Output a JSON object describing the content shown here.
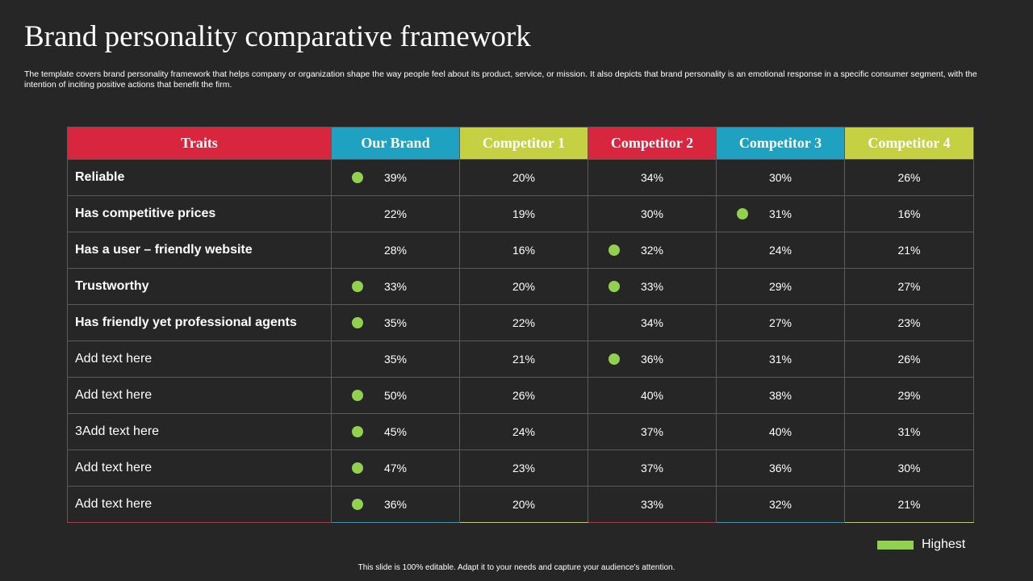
{
  "title": "Brand personality comparative framework",
  "subtitle": "The template covers brand personality framework that helps company or organization shape the way people feel about its product, service, or mission. It also depicts that brand personality is an emotional response in a specific consumer segment, with the intention of inciting positive actions that benefit the firm.",
  "colors": {
    "traits": "#d7263d",
    "our_brand": "#1fa2c2",
    "competitor_1": "#c6d043",
    "competitor_2": "#d7263d",
    "competitor_3": "#1fa2c2",
    "competitor_4": "#c6d043",
    "highest": "#92d050"
  },
  "table": {
    "headers": [
      {
        "label": "Traits",
        "color": "#d7263d",
        "text_color": "#ffffff"
      },
      {
        "label": "Our Brand",
        "color": "#1fa2c2",
        "text_color": "#ffffff"
      },
      {
        "label": "Competitor 1",
        "color": "#c6d043",
        "text_color": "#ffffff"
      },
      {
        "label": "Competitor 2",
        "color": "#d7263d",
        "text_color": "#ffffff"
      },
      {
        "label": "Competitor 3",
        "color": "#1fa2c2",
        "text_color": "#ffffff"
      },
      {
        "label": "Competitor 4",
        "color": "#c6d043",
        "text_color": "#ffffff"
      }
    ],
    "rows": [
      {
        "trait": "Reliable",
        "bold": true,
        "values": [
          "39%",
          "20%",
          "34%",
          "30%",
          "26%"
        ],
        "highest": [
          0
        ]
      },
      {
        "trait": "Has competitive prices",
        "bold": true,
        "values": [
          "22%",
          "19%",
          "30%",
          "31%",
          "16%"
        ],
        "highest": [
          3
        ]
      },
      {
        "trait": "Has a user – friendly website",
        "bold": true,
        "values": [
          "28%",
          "16%",
          "32%",
          "24%",
          "21%"
        ],
        "highest": [
          2
        ]
      },
      {
        "trait": "Trustworthy",
        "bold": true,
        "values": [
          "33%",
          "20%",
          "33%",
          "29%",
          "27%"
        ],
        "highest": [
          0,
          2
        ]
      },
      {
        "trait": "Has friendly yet professional agents",
        "bold": true,
        "values": [
          "35%",
          "22%",
          "34%",
          "27%",
          "23%"
        ],
        "highest": [
          0
        ]
      },
      {
        "trait": "Add text here",
        "bold": false,
        "values": [
          "35%",
          "21%",
          "36%",
          "31%",
          "26%"
        ],
        "highest": [
          2
        ]
      },
      {
        "trait": "Add text here",
        "bold": false,
        "values": [
          "50%",
          "26%",
          "40%",
          "38%",
          "29%"
        ],
        "highest": [
          0
        ]
      },
      {
        "trait": "3Add text here",
        "bold": false,
        "values": [
          "45%",
          "24%",
          "37%",
          "40%",
          "31%"
        ],
        "highest": [
          0
        ]
      },
      {
        "trait": "Add text here",
        "bold": false,
        "values": [
          "47%",
          "23%",
          "37%",
          "36%",
          "30%"
        ],
        "highest": [
          0
        ]
      },
      {
        "trait": "Add text here",
        "bold": false,
        "values": [
          "36%",
          "20%",
          "33%",
          "32%",
          "21%"
        ],
        "highest": [
          0
        ]
      }
    ]
  },
  "legend": {
    "label": "Highest"
  },
  "footer": "This slide is 100% editable.  Adapt it to your needs and capture your audience's attention."
}
